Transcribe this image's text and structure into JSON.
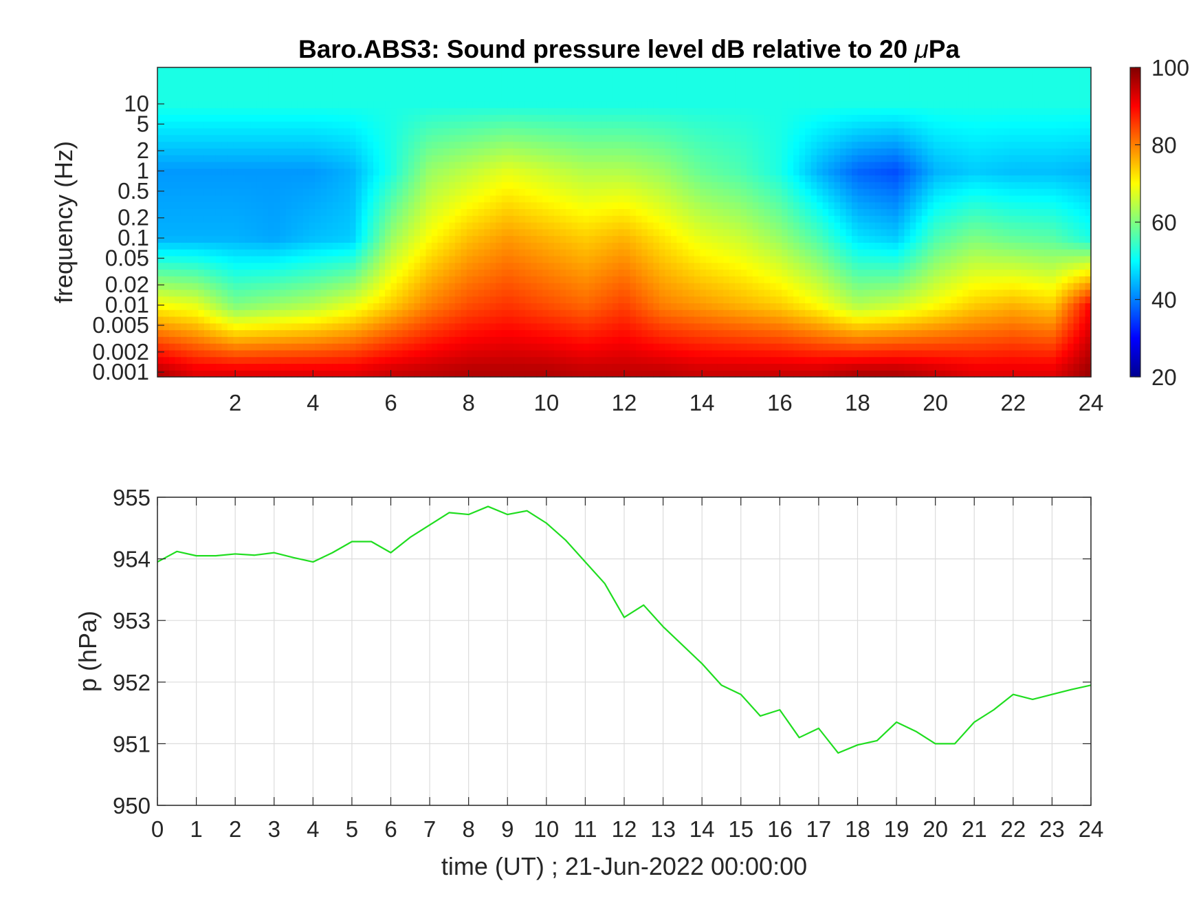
{
  "chart_data": [
    {
      "type": "heatmap",
      "title_prefix": "Baro.ABS3: Sound pressure level dB relative to 20 ",
      "title_mu": "μ",
      "title_suffix": "Pa",
      "ylabel": "frequency (Hz)",
      "y_scale": "log",
      "ylim": [
        0.00085,
        35
      ],
      "xlim": [
        0,
        24
      ],
      "x_ticks": [
        "2",
        "4",
        "6",
        "8",
        "10",
        "12",
        "14",
        "16",
        "18",
        "20",
        "22",
        "24"
      ],
      "x_tick_values": [
        2,
        4,
        6,
        8,
        10,
        12,
        14,
        16,
        18,
        20,
        22,
        24
      ],
      "y_ticks": [
        "10",
        "5",
        "2",
        "1",
        "0.5",
        "0.2",
        "0.1",
        "0.05",
        "0.02",
        "0.01",
        "0.005",
        "0.002",
        "0.001"
      ],
      "y_tick_values": [
        10,
        5,
        2,
        1,
        0.5,
        0.2,
        0.1,
        0.05,
        0.02,
        0.01,
        0.005,
        0.002,
        0.001
      ],
      "colormap": "jet",
      "colorbar": {
        "min": 20,
        "max": 100,
        "ticks": [
          "100",
          "80",
          "60",
          "40",
          "20"
        ],
        "tick_values": [
          100,
          80,
          60,
          40,
          20
        ]
      },
      "time_hours": [
        0,
        1,
        2,
        3,
        4,
        5,
        6,
        7,
        8,
        9,
        10,
        11,
        12,
        13,
        14,
        15,
        16,
        17,
        18,
        19,
        20,
        21,
        22,
        23,
        24
      ],
      "levels_db": {
        "f_10Hz": [
          52,
          52,
          52,
          52,
          52,
          52,
          52,
          52,
          52,
          52,
          52,
          52,
          52,
          52,
          52,
          52,
          52,
          52,
          52,
          52,
          52,
          52,
          52,
          52,
          52
        ],
        "f_1Hz": [
          42,
          42,
          42,
          42,
          42,
          44,
          52,
          62,
          65,
          68,
          66,
          64,
          64,
          62,
          58,
          56,
          52,
          44,
          38,
          36,
          44,
          46,
          45,
          45,
          44
        ],
        "f_0.1Hz": [
          44,
          44,
          44,
          43,
          45,
          46,
          62,
          70,
          75,
          78,
          76,
          74,
          76,
          72,
          68,
          66,
          62,
          56,
          48,
          46,
          56,
          60,
          58,
          57,
          52
        ],
        "f_0.01Hz": [
          70,
          68,
          60,
          62,
          64,
          68,
          74,
          80,
          84,
          86,
          84,
          82,
          85,
          80,
          78,
          76,
          74,
          70,
          64,
          66,
          70,
          74,
          76,
          74,
          90
        ],
        "f_0.001Hz": [
          96,
          92,
          92,
          92,
          92,
          92,
          94,
          95,
          96,
          96,
          96,
          95,
          95,
          95,
          94,
          94,
          94,
          94,
          96,
          96,
          94,
          92,
          92,
          92,
          98
        ]
      }
    },
    {
      "type": "line",
      "ylabel": "p (hPa)",
      "xlabel": "time (UT) ; 21-Jun-2022 00:00:00",
      "xlim": [
        0,
        24
      ],
      "ylim": [
        950,
        955
      ],
      "grid": true,
      "line_color": "#1fdd1f",
      "x_ticks": [
        "0",
        "1",
        "2",
        "3",
        "4",
        "5",
        "6",
        "7",
        "8",
        "9",
        "10",
        "11",
        "12",
        "13",
        "14",
        "15",
        "16",
        "17",
        "18",
        "19",
        "20",
        "21",
        "22",
        "23",
        "24"
      ],
      "x_tick_values": [
        0,
        1,
        2,
        3,
        4,
        5,
        6,
        7,
        8,
        9,
        10,
        11,
        12,
        13,
        14,
        15,
        16,
        17,
        18,
        19,
        20,
        21,
        22,
        23,
        24
      ],
      "y_ticks": [
        "955",
        "954",
        "953",
        "952",
        "951",
        "950"
      ],
      "y_tick_values": [
        955,
        954,
        953,
        952,
        951,
        950
      ],
      "x": [
        0,
        0.5,
        1,
        1.5,
        2,
        2.5,
        3,
        3.5,
        4,
        4.5,
        5,
        5.5,
        6,
        6.5,
        7,
        7.5,
        8,
        8.5,
        9,
        9.5,
        10,
        10.5,
        11,
        11.5,
        12,
        12.5,
        13,
        13.5,
        14,
        14.5,
        15,
        15.5,
        16,
        16.5,
        17,
        17.5,
        18,
        18.5,
        19,
        19.5,
        20,
        20.5,
        21,
        21.5,
        22,
        22.5,
        23,
        23.5,
        24
      ],
      "y": [
        953.95,
        954.12,
        954.05,
        954.05,
        954.08,
        954.06,
        954.1,
        954.02,
        953.95,
        954.1,
        954.28,
        954.28,
        954.1,
        954.35,
        954.55,
        954.75,
        954.72,
        954.85,
        954.72,
        954.78,
        954.58,
        954.3,
        953.95,
        953.6,
        953.05,
        953.25,
        952.9,
        952.6,
        952.3,
        951.95,
        951.8,
        951.45,
        951.55,
        951.1,
        951.25,
        950.85,
        950.98,
        951.05,
        951.35,
        951.2,
        951.0,
        951.0,
        951.35,
        951.55,
        951.8,
        951.72,
        951.8,
        951.88,
        951.95
      ]
    }
  ]
}
